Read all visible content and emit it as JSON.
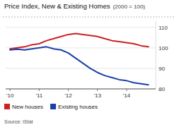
{
  "chart_data": {
    "type": "line",
    "title": "Price Index, New & Existing Homes",
    "subtitle": "(2000 = 100)",
    "source": "Source: IStat",
    "x": [
      2010.0,
      2010.25,
      2010.5,
      2010.75,
      2011.0,
      2011.25,
      2011.5,
      2011.75,
      2012.0,
      2012.25,
      2012.5,
      2012.75,
      2013.0,
      2013.25,
      2013.5,
      2013.75,
      2014.0,
      2014.25,
      2014.5,
      2014.75
    ],
    "series": [
      {
        "name": "New houses",
        "color": "#cc2222",
        "values": [
          99.5,
          100.0,
          100.5,
          101.5,
          102.0,
          103.5,
          104.5,
          105.5,
          106.5,
          107.0,
          106.5,
          106.0,
          105.5,
          104.5,
          103.5,
          103.0,
          102.5,
          102.0,
          101.0,
          100.5
        ]
      },
      {
        "name": "Existing houses",
        "color": "#1a3faa",
        "values": [
          99.0,
          99.3,
          99.0,
          99.5,
          100.0,
          100.5,
          99.5,
          99.0,
          97.5,
          95.0,
          92.5,
          90.0,
          88.0,
          86.5,
          85.5,
          84.5,
          84.0,
          83.0,
          82.5,
          82.0
        ]
      }
    ],
    "xlim": [
      2009.85,
      2015.0
    ],
    "xticks": [
      {
        "value": 2010,
        "label": "'10"
      },
      {
        "value": 2011,
        "label": "'11"
      },
      {
        "value": 2012,
        "label": "'12"
      },
      {
        "value": 2013,
        "label": "'13"
      },
      {
        "value": 2014,
        "label": "'14"
      }
    ],
    "ylim": [
      80,
      113
    ],
    "yticks": [
      80,
      90,
      100,
      110
    ],
    "grid": true,
    "legend": "bottom"
  }
}
